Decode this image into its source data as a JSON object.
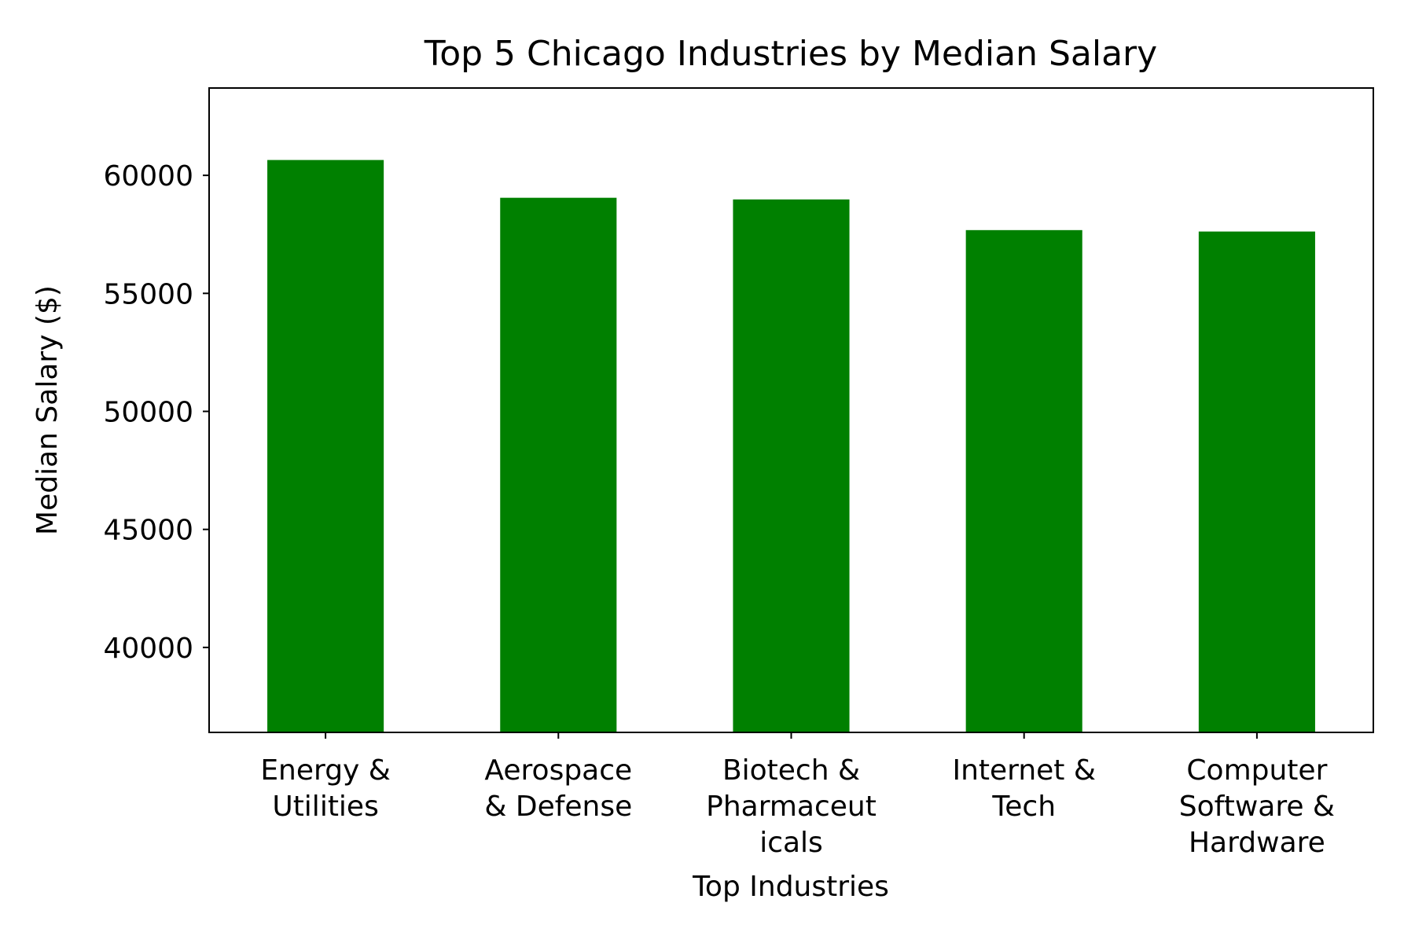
{
  "chart_data": {
    "type": "bar",
    "title": "Top 5 Chicago Industries by Median Salary",
    "xlabel": "Top Industries",
    "ylabel": "Median Salary ($)",
    "categories": [
      "Energy & Utilities",
      "Aerospace & Defense",
      "Biotech & Pharmaceuticals",
      "Internet & Tech",
      "Computer Software & Hardware"
    ],
    "category_label_lines": [
      [
        "Energy &",
        "Utilities"
      ],
      [
        "Aerospace",
        "& Defense"
      ],
      [
        "Biotech &",
        "Pharmaceut",
        "icals"
      ],
      [
        "Internet &",
        "Tech"
      ],
      [
        "Computer",
        "Software &",
        "Hardware"
      ]
    ],
    "values": [
      60650,
      59050,
      58980,
      57680,
      57620
    ],
    "ylim": [
      36400,
      63700
    ],
    "yticks": [
      40000,
      45000,
      50000,
      55000,
      60000
    ],
    "grid": false,
    "legend": "none",
    "colors": {
      "bar": "#008000",
      "axis": "#000000",
      "text": "#000000"
    }
  }
}
